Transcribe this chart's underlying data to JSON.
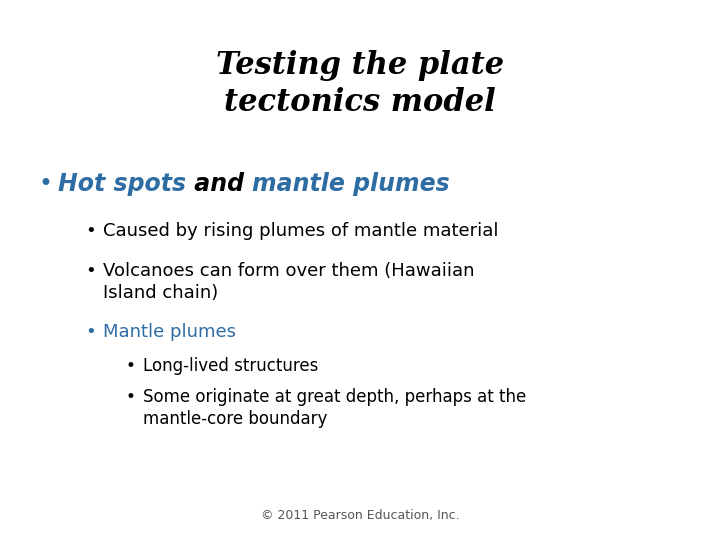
{
  "title_line1": "Testing the plate",
  "title_line2": "tectonics model",
  "title_color": "#000000",
  "title_fontsize": 22,
  "background_color": "#ffffff",
  "blue_color": "#2e6da4",
  "bullet1_text_blue": "Hot spots",
  "bullet1_text_black": " and ",
  "bullet1_text_blue2": "mantle plumes",
  "bullet1_fontsize": 17,
  "sub_bullets": [
    "Caused by rising plumes of mantle material",
    "Volcanoes can form over them (Hawaiian\nIsland chain)"
  ],
  "sub_bullet_fontsize": 13,
  "sub_blue_bullet": "Mantle plumes",
  "sub_blue_fontsize": 13,
  "sub_sub_bullets": [
    "Long-lived structures",
    "Some originate at great depth, perhaps at the\nmantle-core boundary"
  ],
  "sub_sub_fontsize": 12,
  "footer": "© 2011 Pearson Education, Inc.",
  "footer_fontsize": 9,
  "footer_color": "#555555"
}
